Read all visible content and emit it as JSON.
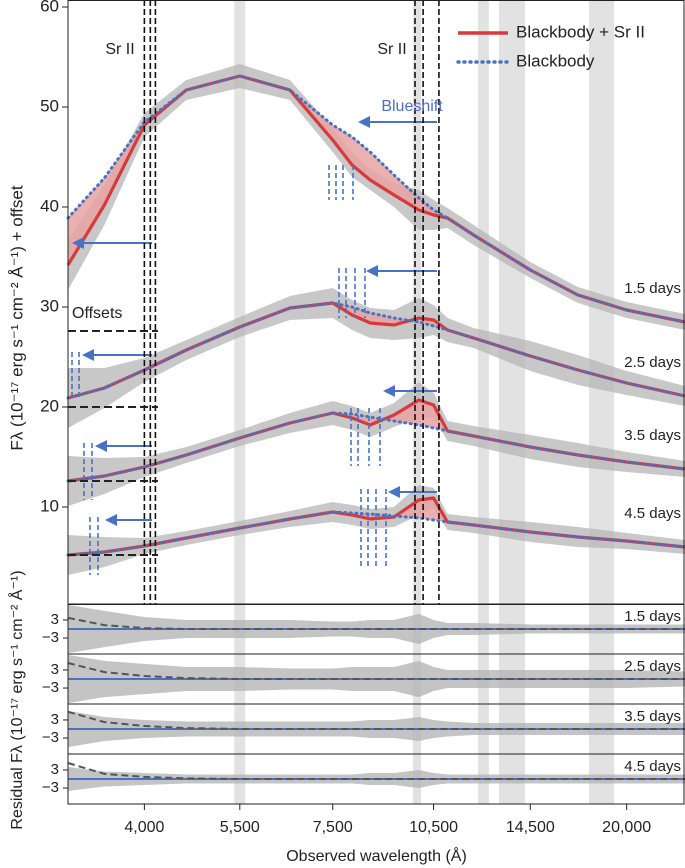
{
  "chart_data": [
    {
      "type": "line",
      "y_label": "Fλ (10⁻¹⁷ erg s⁻¹ cm⁻² Å⁻¹) + offset",
      "xscale": "log",
      "xlim": [
        3100,
        24300
      ],
      "ylim": [
        0.3,
        60.7
      ],
      "yticks": [
        10,
        20,
        30,
        40,
        50,
        60
      ],
      "x": [
        3100,
        3500,
        4000,
        4600,
        5500,
        6500,
        7500,
        8000,
        8500,
        9200,
        10000,
        10500,
        11000,
        12000,
        14500,
        17000,
        20000,
        24300
      ],
      "legend": "upper right",
      "models": [
        {
          "name": "Blackbody + Sr II",
          "color": "#d63a3c",
          "fill": "#e8a2a2"
        },
        {
          "name": "Blackbody",
          "color": "#4a72c4"
        }
      ],
      "noise_color": "#b5b5b5",
      "epochs": [
        {
          "label": "1.5 days",
          "sr_values": [
            34.2,
            40.2,
            48.2,
            51.7,
            53.1,
            51.7,
            46.7,
            44.2,
            42.7,
            41.2,
            39.7,
            39.2,
            38.9,
            37.2,
            33.7,
            31.2,
            29.7,
            28.5
          ],
          "bb_values": [
            38.9,
            42.9,
            48.5,
            51.7,
            53.1,
            51.7,
            48.2,
            47.0,
            45.5,
            43.2,
            40.9,
            39.7,
            38.9,
            37.2,
            33.7,
            31.2,
            29.7,
            28.5
          ],
          "noise": [
            2.5,
            2,
            1.2,
            1,
            1.2,
            1,
            1.2,
            1.2,
            1,
            1.2,
            2,
            1.5,
            1,
            1,
            0.8,
            0.8,
            0.8,
            0.8
          ]
        },
        {
          "label": "2.5 days",
          "sr_values": [
            20.9,
            21.9,
            23.7,
            25.7,
            28.0,
            29.9,
            30.4,
            29.2,
            28.4,
            28.2,
            28.9,
            28.7,
            27.7,
            26.9,
            25.1,
            23.7,
            22.4,
            21.1
          ],
          "bb_values": [
            20.9,
            21.9,
            23.7,
            25.7,
            28.0,
            29.9,
            30.4,
            30.0,
            29.4,
            28.9,
            28.5,
            28.1,
            27.7,
            26.9,
            25.1,
            23.7,
            22.4,
            21.1
          ],
          "noise": [
            3,
            2,
            1.2,
            1,
            1,
            1.2,
            1.5,
            1.5,
            1.5,
            1.5,
            2,
            1.5,
            1.2,
            1,
            1.5,
            1.5,
            1.2,
            1
          ]
        },
        {
          "label": "3.5 days",
          "sr_values": [
            12.6,
            13.1,
            14.0,
            15.2,
            16.9,
            18.4,
            19.4,
            18.9,
            18.2,
            19.2,
            20.7,
            20.2,
            17.6,
            17.1,
            16.0,
            15.2,
            14.5,
            13.8
          ],
          "bb_values": [
            12.6,
            13.1,
            14.0,
            15.2,
            16.9,
            18.4,
            19.4,
            19.3,
            19.0,
            18.6,
            18.2,
            17.9,
            17.6,
            17.1,
            16.0,
            15.2,
            14.5,
            13.8
          ],
          "noise": [
            2.5,
            1.8,
            1,
            0.8,
            0.8,
            1,
            1.2,
            1.2,
            1.2,
            1.2,
            1.8,
            1.2,
            1,
            1,
            1.2,
            1.2,
            1,
            0.8
          ]
        },
        {
          "label": "4.5 days",
          "sr_values": [
            5.2,
            5.5,
            6.1,
            6.9,
            7.9,
            8.8,
            9.5,
            9.2,
            8.8,
            9.0,
            10.7,
            10.9,
            8.5,
            8.2,
            7.5,
            7.0,
            6.6,
            6.0
          ],
          "bb_values": [
            5.2,
            5.5,
            6.1,
            6.9,
            7.9,
            8.8,
            9.5,
            9.4,
            9.3,
            9.1,
            8.9,
            8.7,
            8.5,
            8.2,
            7.5,
            7.0,
            6.6,
            6.0
          ],
          "noise": [
            2,
            1.5,
            0.8,
            0.7,
            0.7,
            0.8,
            1,
            1,
            1,
            1,
            1.5,
            1,
            0.8,
            0.8,
            1,
            1,
            0.8,
            0.7
          ]
        }
      ],
      "sr_lines": [
        4000,
        4080,
        4150,
        9870,
        10140,
        10690
      ],
      "bands": [
        [
          5400,
          5600
        ],
        [
          9800,
          10070
        ],
        [
          12180,
          12630
        ],
        [
          13060,
          14250
        ],
        [
          17640,
          19180
        ]
      ],
      "offsets": [
        27.6,
        20,
        12.6,
        5.2
      ],
      "annotations": [
        "Sr II",
        "Sr II",
        "Blueshift",
        "Offsets"
      ]
    },
    {
      "type": "line",
      "y_label": "Residual Fλ (10⁻¹⁷ erg s⁻¹ cm⁻² Å⁻¹)",
      "x_label": "Observed wavelength (Å)",
      "ylim": [
        -8.3,
        8.3
      ],
      "yticks": [
        3,
        {
          "value": -3,
          "label": "−3"
        }
      ],
      "xticks": [
        {
          "value": 4000,
          "label": "4,000"
        },
        {
          "value": 5500,
          "label": "5,500"
        },
        {
          "value": 7500,
          "label": "7,500"
        },
        {
          "value": 10500,
          "label": "10,500"
        },
        {
          "value": 14500,
          "label": "14,500"
        },
        {
          "value": 20000,
          "label": "20,000"
        }
      ],
      "baseline": 0,
      "baseline_color": "#4a72c4",
      "panels": [
        {
          "label": "1.5 days",
          "model": [
            3.7,
            1.3,
            0.3,
            0,
            0,
            0,
            0,
            0,
            0,
            0,
            0,
            0,
            0,
            0,
            0,
            0,
            0,
            0
          ],
          "spread": [
            8,
            6,
            4,
            3,
            3,
            3,
            2.5,
            2.5,
            3,
            3,
            5,
            3,
            2,
            2,
            1.5,
            1.5,
            1.5,
            1.5
          ]
        },
        {
          "label": "2.5 days",
          "model": [
            5.3,
            2.3,
            1,
            0.3,
            0,
            0,
            0,
            0,
            0,
            0,
            0,
            0,
            0,
            0,
            0,
            0,
            0,
            0
          ],
          "spread": [
            8,
            6,
            5,
            4,
            4,
            3.5,
            3.5,
            4,
            4,
            4,
            6,
            4,
            3,
            3,
            3,
            3,
            3,
            2.5
          ]
        },
        {
          "label": "3.5 days",
          "model": [
            5.7,
            2.3,
            1,
            0.3,
            0,
            0,
            0,
            0,
            0,
            0,
            0,
            0,
            0,
            0,
            0,
            0,
            0,
            0
          ],
          "spread": [
            6,
            4,
            3,
            2.5,
            2.5,
            2.5,
            2.5,
            2.5,
            3,
            3,
            4,
            3,
            2.5,
            2,
            2,
            2,
            2,
            2
          ]
        },
        {
          "label": "4.5 days",
          "model": [
            5.3,
            1.7,
            0.7,
            0.2,
            0,
            0,
            0,
            0,
            0,
            0,
            0,
            0,
            0,
            0,
            0,
            0,
            0,
            0
          ],
          "spread": [
            4,
            2.5,
            2,
            1.5,
            1.5,
            1.5,
            1.5,
            1.5,
            2,
            2,
            3,
            2,
            1.5,
            1.5,
            1.5,
            1.5,
            1.5,
            1.5
          ]
        }
      ]
    }
  ]
}
